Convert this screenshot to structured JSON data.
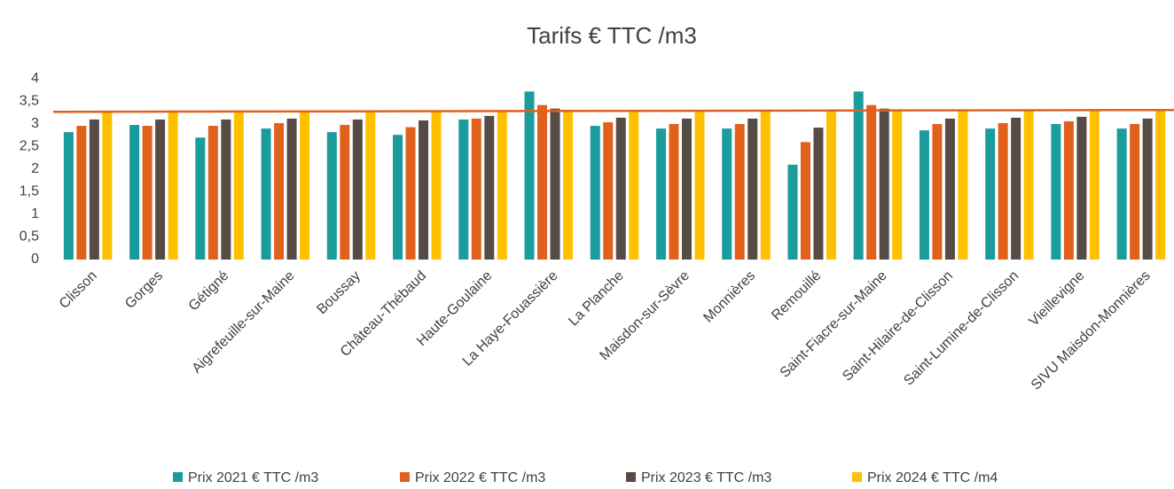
{
  "chart_data": {
    "type": "bar",
    "title": "Tarifs € TTC /m3",
    "categories": [
      "Clisson",
      "Gorges",
      "Gétigné",
      "Aigrefeuille-sur-Maine",
      "Boussay",
      "Château-Thébaud",
      "Haute-Goulaine",
      "La Haye-Fouassière",
      "La Planche",
      "Maisdon-sur-Sèvre",
      "Monnières",
      "Remouillé",
      "Saint-Fiacre-sur-Maine",
      "Saint-Hilaire-de-Clisson",
      "Saint-Lumine-de-Clisson",
      "Vieillevigne",
      "SIVU Maisdon-Monnières"
    ],
    "series": [
      {
        "name": "Prix 2021 € TTC /m3",
        "color": "#1a9c9c",
        "values": [
          2.82,
          2.98,
          2.7,
          2.9,
          2.82,
          2.76,
          3.1,
          3.72,
          2.96,
          2.9,
          2.9,
          2.1,
          3.72,
          2.86,
          2.9,
          3.0,
          2.9
        ]
      },
      {
        "name": "Prix 2022 € TTC /m3",
        "color": "#e0611b",
        "values": [
          2.96,
          2.96,
          2.96,
          3.02,
          2.98,
          2.93,
          3.12,
          3.42,
          3.04,
          3.0,
          3.0,
          2.6,
          3.42,
          3.0,
          3.02,
          3.06,
          3.0
        ]
      },
      {
        "name": "Prix 2023 € TTC /m3",
        "color": "#574b45",
        "values": [
          3.1,
          3.1,
          3.1,
          3.12,
          3.1,
          3.08,
          3.18,
          3.34,
          3.14,
          3.12,
          3.12,
          2.92,
          3.34,
          3.12,
          3.14,
          3.16,
          3.12
        ]
      },
      {
        "name": "Prix 2024 € TTC /m4",
        "color": "#ffc000",
        "values": [
          3.28,
          3.3,
          3.3,
          3.3,
          3.3,
          3.3,
          3.3,
          3.3,
          3.3,
          3.3,
          3.3,
          3.3,
          3.3,
          3.3,
          3.3,
          3.3,
          3.3
        ]
      }
    ],
    "trend_line": {
      "color": "#e0611b",
      "values": [
        3.27,
        3.31
      ]
    },
    "ylim": [
      0,
      4
    ],
    "yticks": [
      0,
      {
        "value": 0.5,
        "label": "0,5"
      },
      1,
      {
        "value": 1.5,
        "label": "1,5"
      },
      2,
      {
        "value": 2.5,
        "label": "2,5"
      },
      3,
      {
        "value": 3.5,
        "label": "3,5"
      },
      4
    ],
    "grid": false
  }
}
